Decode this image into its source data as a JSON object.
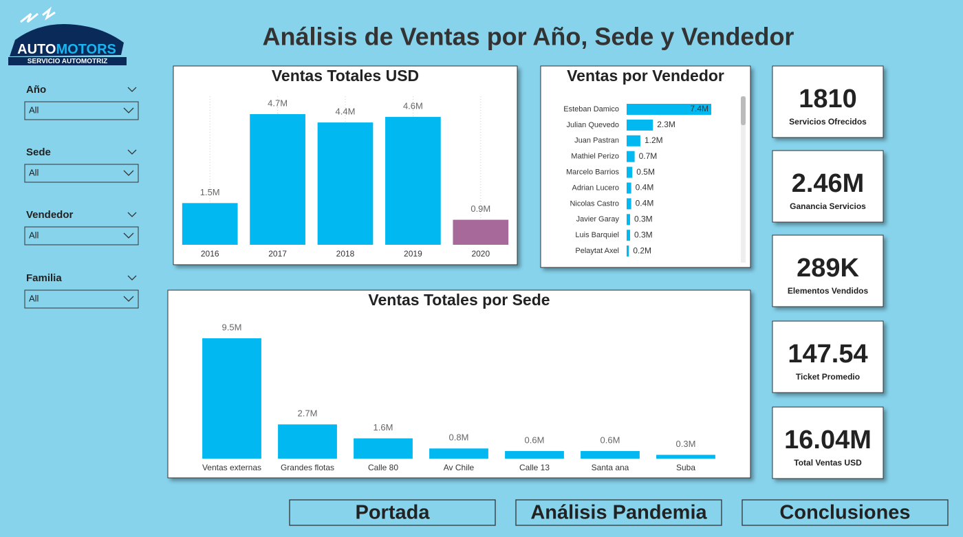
{
  "header": {
    "title": "Análisis de Ventas por Año, Sede y Vendedor"
  },
  "logo": {
    "name_a": "AUTO",
    "name_b": "MOTORS",
    "tagline": "SERVICIO AUTOMOTRIZ"
  },
  "filters": [
    {
      "label": "Año",
      "value": "All"
    },
    {
      "label": "Sede",
      "value": "All"
    },
    {
      "label": "Vendedor",
      "value": "All"
    },
    {
      "label": "Familia",
      "value": "All"
    }
  ],
  "chart_data": [
    {
      "type": "bar",
      "title": "Ventas Totales USD",
      "categories": [
        "2016",
        "2017",
        "2018",
        "2019",
        "2020"
      ],
      "values": [
        1500000,
        4700000,
        4400000,
        4600000,
        900000
      ],
      "value_labels": [
        "1.5M",
        "4.7M",
        "4.4M",
        "4.6M",
        "0.9M"
      ],
      "colors": [
        "#01b8f1",
        "#01b8f1",
        "#01b8f1",
        "#01b8f1",
        "#a66999"
      ]
    },
    {
      "type": "bar",
      "orientation": "horizontal",
      "title": "Ventas por Vendedor",
      "categories": [
        "Esteban Damico",
        "Julian Quevedo",
        "Juan Pastran",
        "Mathiel Perizo",
        "Marcelo Barrios",
        "Adrian Lucero",
        "Nicolas Castro",
        "Javier Garay",
        "Luis Barquiel",
        "Pelaytat Axel"
      ],
      "values": [
        7400000,
        2300000,
        1200000,
        700000,
        500000,
        400000,
        400000,
        300000,
        300000,
        200000
      ],
      "value_labels": [
        "7.4M",
        "2.3M",
        "1.2M",
        "0.7M",
        "0.5M",
        "0.4M",
        "0.4M",
        "0.3M",
        "0.3M",
        "0.2M"
      ],
      "color": "#01b8f1"
    },
    {
      "type": "bar",
      "title": "Ventas Totales por Sede",
      "categories": [
        "Ventas externas",
        "Grandes flotas",
        "Calle 80",
        "Av Chile",
        "Calle 13",
        "Santa ana",
        "Suba"
      ],
      "values": [
        9500000,
        2700000,
        1600000,
        800000,
        600000,
        600000,
        300000
      ],
      "value_labels": [
        "9.5M",
        "2.7M",
        "1.6M",
        "0.8M",
        "0.6M",
        "0.6M",
        "0.3M"
      ],
      "color": "#01b8f1"
    }
  ],
  "kpis": [
    {
      "value": "1810",
      "label": "Servicios Ofrecidos"
    },
    {
      "value": "2.46M",
      "label": "Ganancia Servicios"
    },
    {
      "value": "289K",
      "label": "Elementos Vendidos"
    },
    {
      "value": "147.54",
      "label": "Ticket Promedio"
    },
    {
      "value": "16.04M",
      "label": "Total Ventas USD"
    }
  ],
  "nav": [
    "Portada",
    "Análisis Pandemia",
    "Conclusiones"
  ]
}
